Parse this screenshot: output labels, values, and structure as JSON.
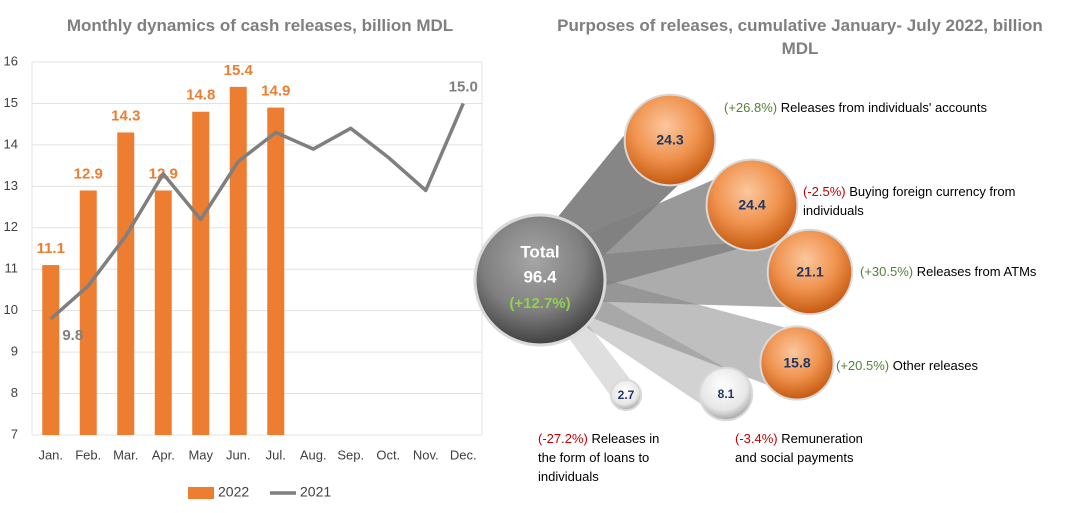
{
  "chart_data": [
    {
      "type": "combo",
      "title": "Monthly dynamics of cash releases, billion MDL",
      "categories": [
        "Jan.",
        "Feb.",
        "Mar.",
        "Apr.",
        "May",
        "Jun.",
        "Jul.",
        "Aug.",
        "Sep.",
        "Oct.",
        "Nov.",
        "Dec."
      ],
      "series": [
        {
          "name": "2022",
          "kind": "bar",
          "color": "#ed7d31",
          "values": [
            11.1,
            12.9,
            14.3,
            12.9,
            14.8,
            15.4,
            14.9,
            null,
            null,
            null,
            null,
            null
          ]
        },
        {
          "name": "2021",
          "kind": "line",
          "color": "#7f7f7f",
          "values": [
            9.8,
            10.6,
            11.8,
            13.3,
            12.2,
            13.6,
            14.3,
            13.9,
            14.4,
            13.7,
            12.9,
            15.0
          ],
          "value_labels": [
            "9.8",
            null,
            null,
            null,
            null,
            null,
            null,
            null,
            null,
            null,
            null,
            "15.0"
          ]
        }
      ],
      "ylim": [
        7,
        16
      ],
      "yticks": [
        7,
        8,
        9,
        10,
        11,
        12,
        13,
        14,
        15,
        16
      ],
      "grid": true,
      "legend": "bottom"
    },
    {
      "type": "bubble",
      "title": "Purposes of releases, cumulative January- July 2022, billion MDL",
      "total_label": "Total",
      "total": 96.4,
      "total_change": 12.7,
      "total_change_label": "(+12.7%)",
      "categories": [
        "Releases from individuals' accounts",
        "Buying foreign currency from individuals",
        "Releases from ATMs",
        "Other releases",
        "Remuneration and social payments",
        "Releases in the form of loans to individuals"
      ],
      "values": [
        24.3,
        24.4,
        21.1,
        15.8,
        8.1,
        2.7
      ],
      "changes": [
        26.8,
        -2.5,
        30.5,
        20.5,
        -3.4,
        -27.2
      ],
      "change_labels": [
        "(+26.8%)",
        "(-2.5%)",
        "(+30.5%)",
        "(+20.5%)",
        "(-3.4%)",
        "(-27.2%)"
      ]
    }
  ]
}
